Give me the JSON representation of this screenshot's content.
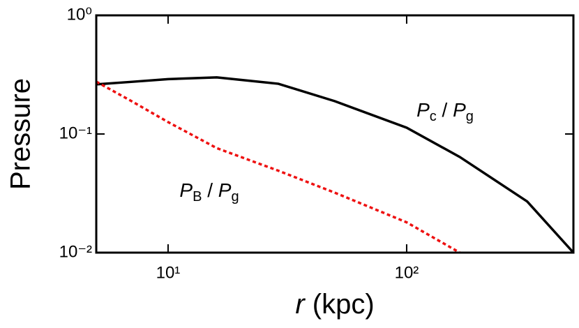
{
  "chart_data": {
    "type": "line",
    "xlabel": "r (kpc)",
    "ylabel": "Pressure",
    "xlog": true,
    "ylog": true,
    "xlim": [
      5,
      500
    ],
    "ylim": [
      0.01,
      1
    ],
    "xticks": [
      {
        "value": 10,
        "label": "10¹"
      },
      {
        "value": 100,
        "label": "10²"
      }
    ],
    "yticks": [
      {
        "value": 0.01,
        "label": "10⁻²"
      },
      {
        "value": 0.1,
        "label": "10⁻¹"
      },
      {
        "value": 1,
        "label": "10⁰"
      }
    ],
    "x": [
      5,
      7,
      10,
      16,
      29,
      50,
      100,
      167,
      320,
      500
    ],
    "series": [
      {
        "name": "Pc / Pg",
        "color": "#000000",
        "dash": false,
        "values": [
          0.262,
          0.275,
          0.29,
          0.3,
          0.265,
          0.189,
          0.113,
          0.064,
          0.027,
          0.01
        ]
      },
      {
        "name": "PB / Pg",
        "color": "#ee1111",
        "dash": true,
        "values": [
          0.276,
          0.19,
          0.126,
          0.076,
          0.049,
          0.032,
          0.018,
          0.01,
          null,
          null
        ]
      }
    ]
  }
}
